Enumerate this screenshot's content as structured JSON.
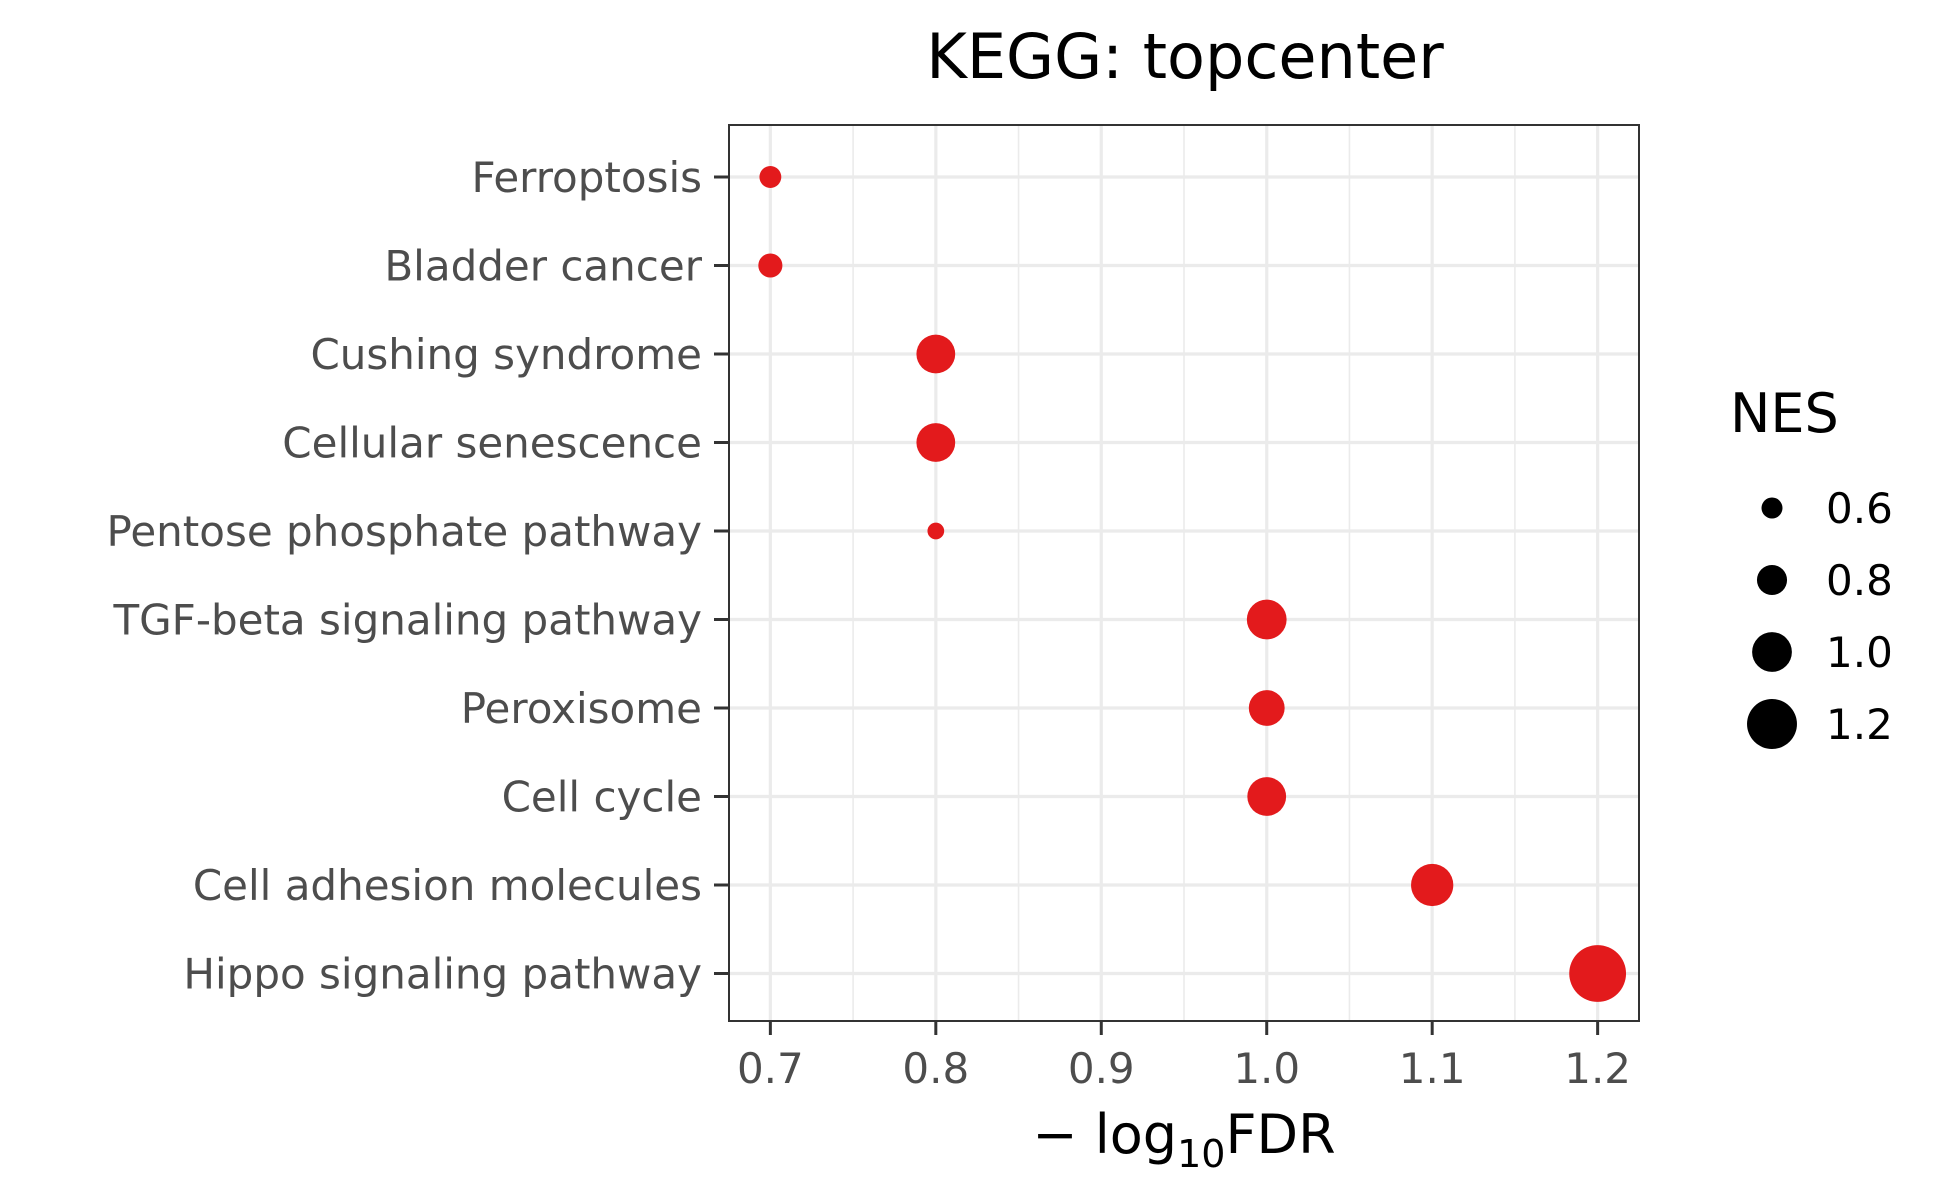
{
  "chart_data": {
    "type": "scatter",
    "title": "KEGG: topcenter",
    "xlabel": {
      "prefix": "− log",
      "subscript": "10",
      "suffix": "FDR"
    },
    "ylabel": "",
    "xlim": [
      0.675,
      1.225
    ],
    "xticks": [
      0.7,
      0.8,
      0.9,
      1.0,
      1.1,
      1.2
    ],
    "xtick_labels": [
      "0.7",
      "0.8",
      "0.9",
      "1.0",
      "1.1",
      "1.2"
    ],
    "grid": true,
    "point_color": "#e31a1c",
    "categories": [
      "Ferroptosis",
      "Bladder cancer",
      "Cushing syndrome",
      "Cellular senescence",
      "Pentose phosphate pathway",
      "TGF-beta signaling pathway",
      "Peroxisome",
      "Cell cycle",
      "Cell adhesion molecules",
      "Hippo signaling pathway"
    ],
    "points": [
      {
        "category": "Ferroptosis",
        "x": 0.7,
        "size": 0.62
      },
      {
        "category": "Bladder cancer",
        "x": 0.7,
        "size": 0.67
      },
      {
        "category": "Cushing syndrome",
        "x": 0.8,
        "size": 0.98
      },
      {
        "category": "Cellular senescence",
        "x": 0.8,
        "size": 0.98
      },
      {
        "category": "Pentose phosphate pathway",
        "x": 0.8,
        "size": 0.5
      },
      {
        "category": "TGF-beta signaling pathway",
        "x": 1.0,
        "size": 1.0
      },
      {
        "category": "Peroxisome",
        "x": 1.0,
        "size": 0.92
      },
      {
        "category": "Cell cycle",
        "x": 1.0,
        "size": 0.98
      },
      {
        "category": "Cell adhesion molecules",
        "x": 1.1,
        "size": 1.05
      },
      {
        "category": "Hippo signaling pathway",
        "x": 1.2,
        "size": 1.33
      }
    ],
    "legend": {
      "title": "NES",
      "position": "right",
      "color": "#000000",
      "entries": [
        {
          "label": "0.6",
          "value": 0.6
        },
        {
          "label": "0.8",
          "value": 0.8
        },
        {
          "label": "1.0",
          "value": 1.0
        },
        {
          "label": "1.2",
          "value": 1.2
        }
      ]
    }
  }
}
